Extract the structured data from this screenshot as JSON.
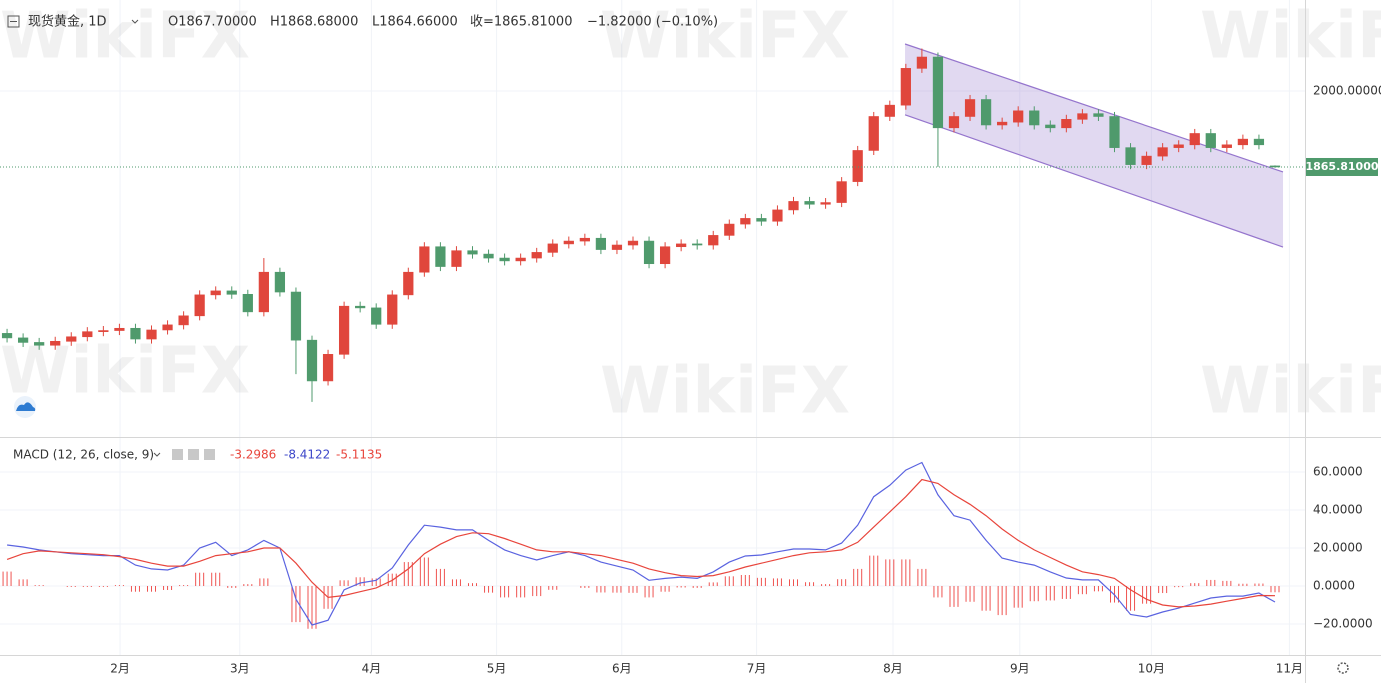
{
  "chart_data": [
    {
      "type": "candlestick",
      "title": "现货黄金, 1D",
      "legend_values": [
        "O1867.70000",
        "H1868.68000",
        "L1864.66000",
        "收=1865.81000",
        "−1.82000 (−0.10%)"
      ],
      "watermark": "WikiFX",
      "up_color": "#e0463c",
      "down_color": "#4f9a6c",
      "open": [
        1572,
        1564,
        1556,
        1551,
        1558,
        1566,
        1575,
        1577,
        1581,
        1562,
        1578,
        1587,
        1603,
        1640,
        1647,
        1641,
        1610,
        1680,
        1645,
        1560,
        1488,
        1535,
        1620,
        1617,
        1588,
        1640,
        1680,
        1725,
        1690,
        1718,
        1712,
        1705,
        1700,
        1705,
        1715,
        1730,
        1735,
        1740,
        1720,
        1728,
        1735,
        1695,
        1725,
        1730,
        1728,
        1745,
        1765,
        1775,
        1770,
        1790,
        1805,
        1800,
        1803,
        1840,
        1895,
        1955,
        1975,
        2040,
        2060,
        1935,
        1955,
        1985,
        1940,
        1945,
        1965,
        1940,
        1935,
        1950,
        1960,
        1955,
        1900,
        1870,
        1885,
        1900,
        1905,
        1925,
        1900,
        1905,
        1915,
        1867.7
      ],
      "high": [
        1580,
        1572,
        1564,
        1566,
        1574,
        1583,
        1585,
        1589,
        1589,
        1586,
        1595,
        1611,
        1648,
        1655,
        1655,
        1649,
        1705,
        1688,
        1653,
        1568,
        1543,
        1628,
        1628,
        1625,
        1648,
        1688,
        1733,
        1733,
        1726,
        1726,
        1720,
        1713,
        1713,
        1723,
        1738,
        1743,
        1748,
        1748,
        1736,
        1743,
        1743,
        1733,
        1738,
        1738,
        1753,
        1773,
        1783,
        1783,
        1798,
        1813,
        1813,
        1811,
        1848,
        1903,
        1963,
        1983,
        2048,
        2075,
        2068,
        1963,
        1993,
        1993,
        1953,
        1973,
        1973,
        1948,
        1958,
        1968,
        1968,
        1963,
        1908,
        1893,
        1908,
        1913,
        1933,
        1933,
        1913,
        1923,
        1923,
        1868.68
      ],
      "low": [
        1556,
        1548,
        1543,
        1543,
        1550,
        1558,
        1567,
        1569,
        1554,
        1554,
        1570,
        1579,
        1595,
        1632,
        1633,
        1602,
        1602,
        1637,
        1500,
        1451,
        1480,
        1527,
        1609,
        1580,
        1580,
        1632,
        1672,
        1682,
        1682,
        1704,
        1697,
        1692,
        1692,
        1697,
        1707,
        1722,
        1727,
        1712,
        1712,
        1720,
        1687,
        1687,
        1717,
        1720,
        1720,
        1737,
        1757,
        1762,
        1762,
        1782,
        1792,
        1792,
        1795,
        1832,
        1887,
        1947,
        1967,
        2032,
        1866,
        1927,
        1947,
        1932,
        1932,
        1937,
        1932,
        1927,
        1927,
        1942,
        1947,
        1892,
        1862,
        1862,
        1877,
        1892,
        1897,
        1892,
        1892,
        1897,
        1897,
        1864.66
      ],
      "close": [
        1564,
        1556,
        1551,
        1558,
        1566,
        1575,
        1577,
        1581,
        1562,
        1578,
        1587,
        1603,
        1640,
        1647,
        1641,
        1610,
        1680,
        1645,
        1560,
        1488,
        1535,
        1620,
        1617,
        1588,
        1640,
        1680,
        1725,
        1690,
        1718,
        1712,
        1705,
        1700,
        1705,
        1715,
        1730,
        1735,
        1740,
        1720,
        1728,
        1735,
        1695,
        1725,
        1730,
        1728,
        1745,
        1765,
        1775,
        1770,
        1790,
        1805,
        1800,
        1803,
        1840,
        1895,
        1955,
        1975,
        2040,
        2060,
        1935,
        1955,
        1985,
        1940,
        1945,
        1965,
        1940,
        1935,
        1950,
        1960,
        1955,
        1900,
        1870,
        1885,
        1900,
        1905,
        1925,
        1900,
        1905,
        1915,
        1905,
        1865.81
      ],
      "channel": {
        "x": [
          55.95,
          79.5
        ],
        "upper": [
          2083,
          1857
        ],
        "lower": [
          1958,
          1724.5
        ],
        "color": "#9575cd"
      },
      "last_price": 1865.81,
      "last_price_label": "1865.81000",
      "xlim": [
        -0.44,
        80.87
      ],
      "xticks": [
        {
          "value": 7.04,
          "label": "2月"
        },
        {
          "value": 14.5,
          "label": "3月"
        },
        {
          "value": 22.7,
          "label": "4月"
        },
        {
          "value": 30.5,
          "label": "5月"
        },
        {
          "value": 38.3,
          "label": "6月"
        },
        {
          "value": 46.7,
          "label": "7月"
        },
        {
          "value": 55.2,
          "label": "8月"
        },
        {
          "value": 63.1,
          "label": "9月"
        },
        {
          "value": 71.3,
          "label": "10月"
        },
        {
          "value": 79.9,
          "label": "11月"
        }
      ],
      "ylim": [
        1389,
        2160.7
      ],
      "yticks": [
        {
          "value": 2000,
          "label": "2000.00000"
        }
      ],
      "grid": true
    },
    {
      "type": "macd",
      "title": "MACD (12, 26, close, 9)",
      "legend_values": [
        "-3.2986",
        "-8.4122",
        "-5.1135"
      ],
      "xlim": [
        -0.44,
        80.87
      ],
      "ylim": [
        -36.3,
        76.3
      ],
      "yticks": [
        {
          "value": 60,
          "label": "60.0000"
        },
        {
          "value": 40,
          "label": "40.0000"
        },
        {
          "value": 20,
          "label": "20.0000"
        },
        {
          "value": 0,
          "label": "0.0000"
        },
        {
          "value": -20,
          "label": "−20.0000"
        }
      ],
      "grid": true,
      "histogram": {
        "color": "#ef5350",
        "values": [
          7.6,
          3.5,
          0.5,
          0,
          -0.5,
          -0.5,
          -0.5,
          0.5,
          -3,
          -3,
          -2.1,
          0.5,
          7,
          7,
          -1,
          1,
          4,
          0,
          -19,
          -22.5,
          -12,
          3,
          4.6,
          4,
          6.5,
          12.6,
          15,
          9,
          3.5,
          1.5,
          -3.5,
          -6,
          -6,
          -5.3,
          -2,
          0,
          -1,
          -3.4,
          -3.5,
          -3.6,
          -6,
          -3,
          -0.8,
          -1,
          1.9,
          5.1,
          5.8,
          4.3,
          4,
          3.5,
          2,
          1,
          3.6,
          9,
          16,
          14,
          14,
          9,
          -6,
          -11,
          -8.3,
          -13,
          -15.3,
          -11.4,
          -8,
          -7.6,
          -6.8,
          -4.3,
          -2.8,
          -8.7,
          -13,
          -9.3,
          -3.7,
          -0.6,
          1.5,
          3.2,
          2.7,
          1.2,
          1.3,
          -3.2986
        ]
      },
      "series": [
        {
          "color": "#5a63e0",
          "values": [
            21.6,
            20.5,
            19,
            18,
            17,
            16.5,
            16,
            16,
            11,
            9,
            8.4,
            11,
            20,
            23,
            16,
            19,
            24,
            20,
            -7,
            -20.5,
            -18,
            -2,
            1.6,
            3,
            9.5,
            21.6,
            32,
            31,
            29.5,
            29.5,
            24,
            19,
            16,
            13.7,
            16,
            18,
            16,
            12.6,
            10.5,
            8.4,
            3,
            4,
            4.7,
            4,
            7.4,
            12.6,
            15.8,
            16.3,
            18,
            19.5,
            19.5,
            19,
            22.6,
            32,
            47,
            53,
            61,
            65,
            48,
            37,
            34.7,
            24,
            14.7,
            12.6,
            11,
            7.4,
            4.2,
            3.2,
            3.2,
            -4.7,
            -15,
            -16.3,
            -13.7,
            -11.6,
            -9,
            -6.3,
            -5.3,
            -5.3,
            -3.7,
            -8.4122
          ]
        },
        {
          "color": "#e8453c",
          "values": [
            14,
            17,
            18.5,
            18,
            17.5,
            17,
            16.5,
            15.5,
            14,
            12,
            10.5,
            10.5,
            13,
            16,
            17,
            18,
            20,
            20,
            12,
            2,
            -6,
            -5,
            -3,
            -1,
            3,
            9,
            17,
            22,
            26,
            28,
            27.5,
            25,
            22,
            19,
            18,
            18,
            17,
            16,
            14,
            12,
            9,
            7,
            5.5,
            5,
            5.5,
            7.5,
            10,
            12,
            14,
            16,
            17.5,
            18,
            19,
            23,
            31,
            39,
            47,
            56,
            54,
            48,
            43,
            37,
            30,
            24,
            19,
            15,
            11,
            7.5,
            6,
            4,
            -2,
            -7,
            -10,
            -11,
            -10.5,
            -9.5,
            -8,
            -6.5,
            -5,
            -5.1135
          ]
        }
      ]
    }
  ]
}
